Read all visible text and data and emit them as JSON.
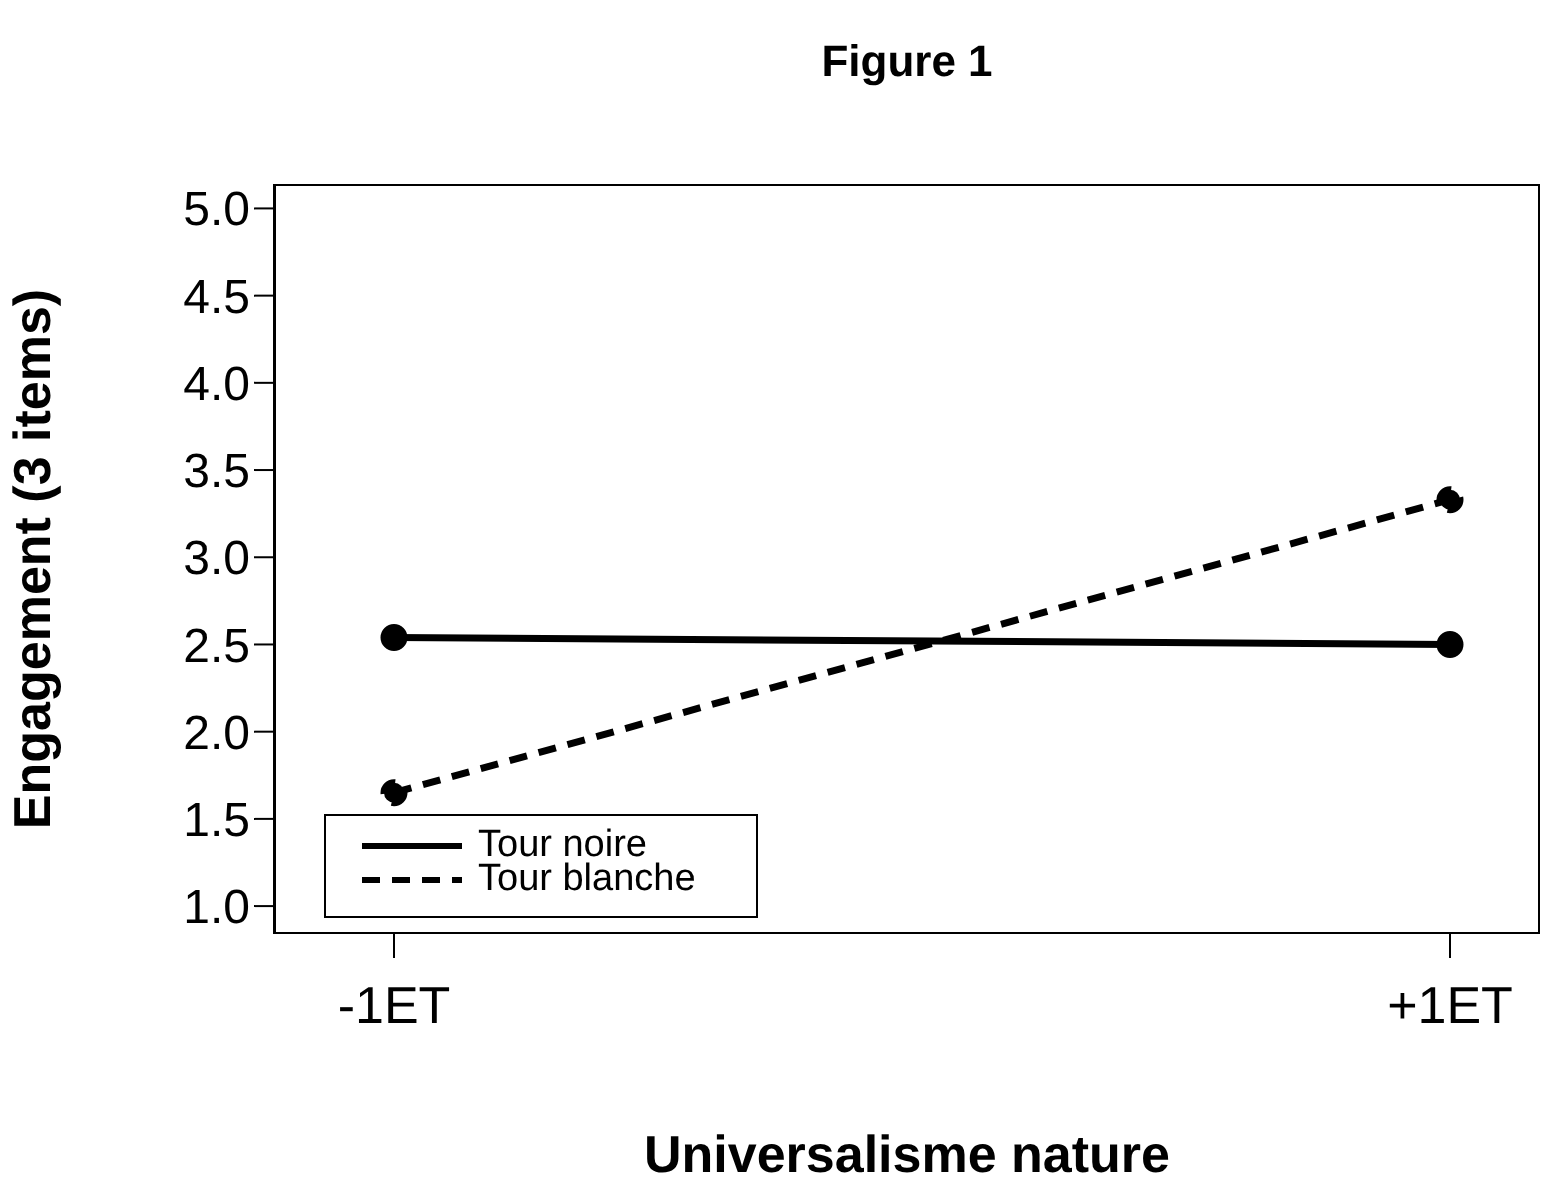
{
  "chart_data": {
    "type": "line",
    "title": "Figure 1",
    "xlabel": "Universalisme nature",
    "ylabel": "Engagement (3 items)",
    "categories": [
      "-1ET",
      "+1ET"
    ],
    "series": [
      {
        "name": "Tour noire",
        "color": "#000000",
        "values": [
          2.54,
          2.5
        ],
        "line_style": "solid"
      },
      {
        "name": "Tour blanche",
        "color": "#000000",
        "values": [
          1.65,
          3.33
        ],
        "line_style": "dashed"
      }
    ],
    "ylim": [
      0.84,
      5.14
    ],
    "yticks": [
      {
        "value": 1,
        "label": "1.0"
      },
      {
        "value": 1.5,
        "label": "1.5"
      },
      {
        "value": 2,
        "label": "2.0"
      },
      {
        "value": 2.5,
        "label": "2.5"
      },
      {
        "value": 3,
        "label": "3.0"
      },
      {
        "value": 3.5,
        "label": "3.5"
      },
      {
        "value": 4,
        "label": "4.0"
      },
      {
        "value": 4.5,
        "label": "4.5"
      },
      {
        "value": 5,
        "label": "5.0"
      }
    ],
    "grid": false,
    "legend": "bottom left",
    "marker": "circle"
  }
}
